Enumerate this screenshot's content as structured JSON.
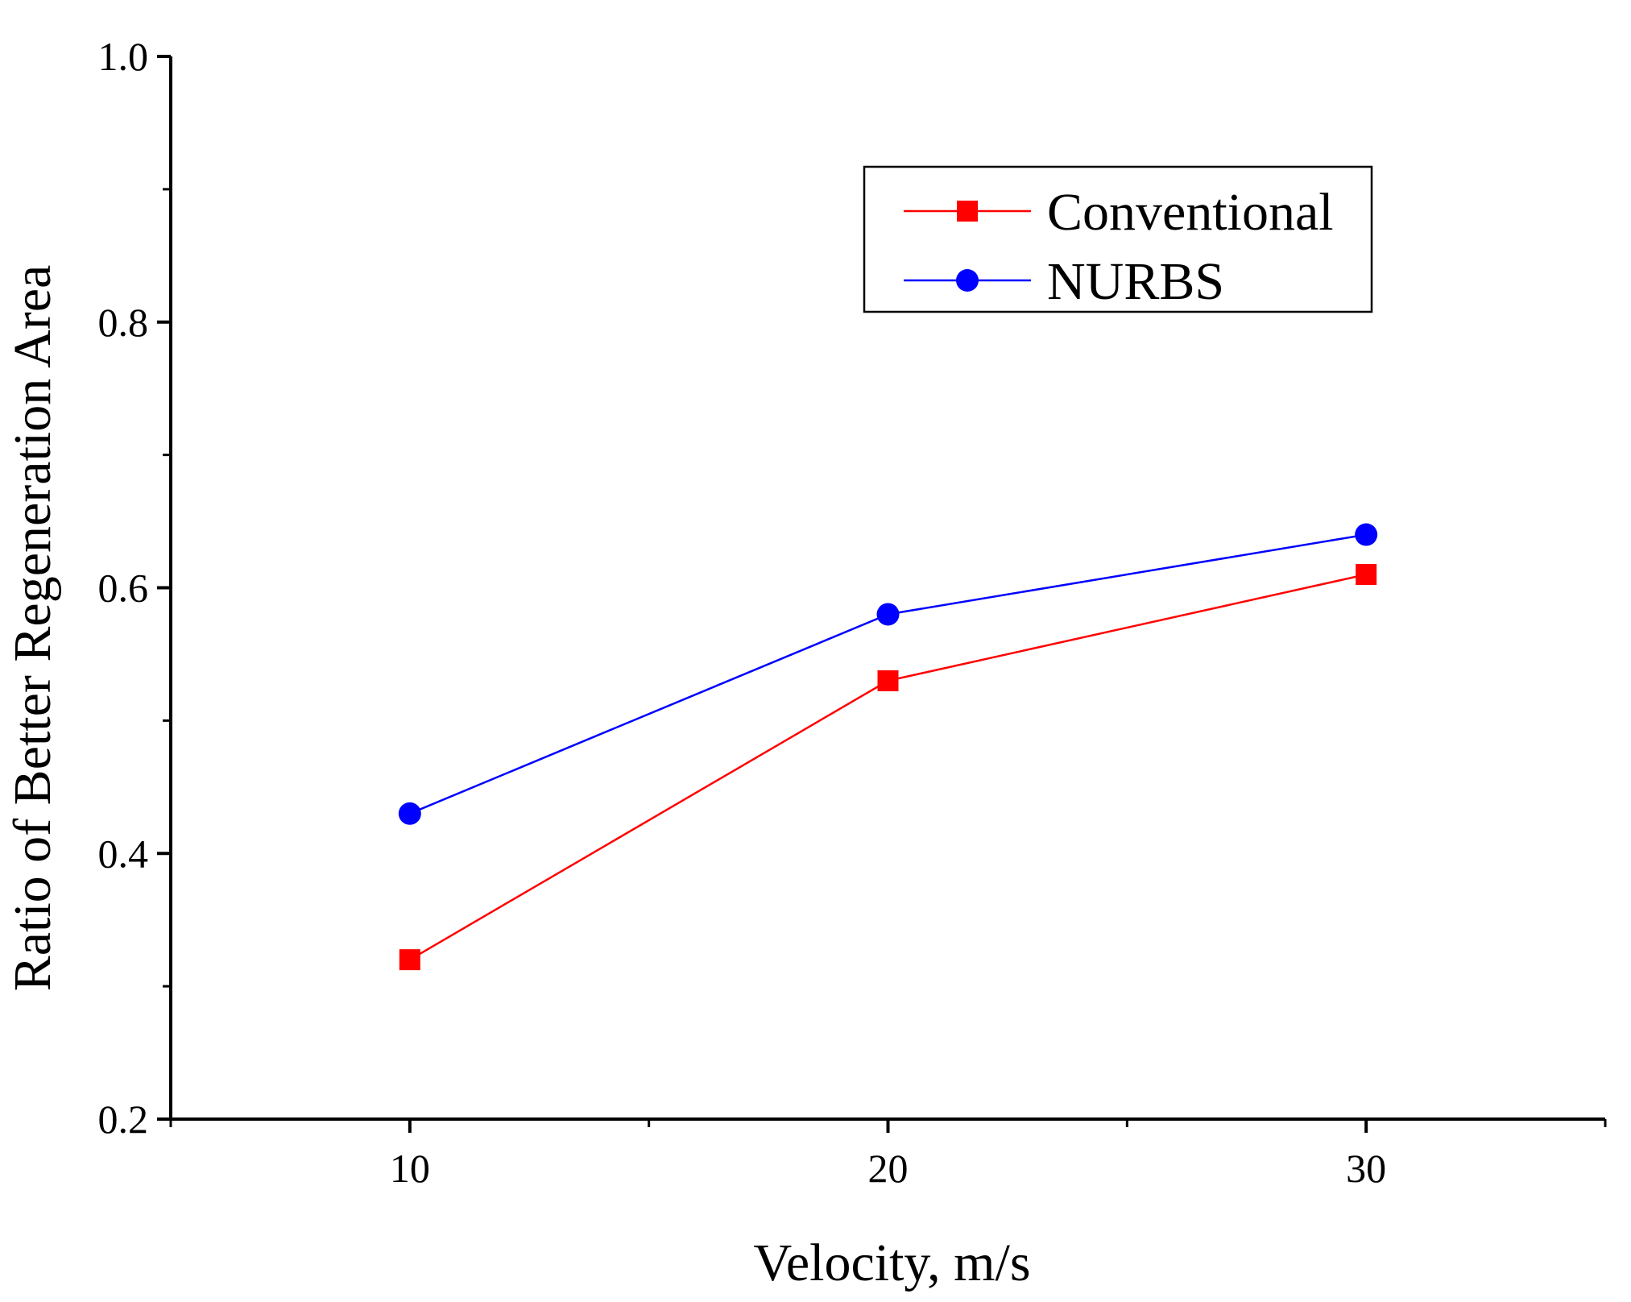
{
  "chart_data": {
    "type": "line",
    "title": "",
    "xlabel": "Velocity, m/s",
    "ylabel": "Ratio of Better Regeneration Area",
    "x": [
      10,
      20,
      30
    ],
    "xlim": [
      5,
      35
    ],
    "ylim": [
      0.2,
      1.0
    ],
    "x_tick_labels": [
      "10",
      "20",
      "30"
    ],
    "y_tick_labels": [
      "0.2",
      "0.4",
      "0.6",
      "0.8",
      "1.0"
    ],
    "grid": false,
    "legend_position": "top-right",
    "series": [
      {
        "name": "Conventional",
        "values": [
          0.32,
          0.53,
          0.61
        ],
        "color": "#ff0000",
        "marker": "square"
      },
      {
        "name": "NURBS",
        "values": [
          0.43,
          0.58,
          0.64
        ],
        "color": "#0000ff",
        "marker": "circle"
      }
    ]
  }
}
